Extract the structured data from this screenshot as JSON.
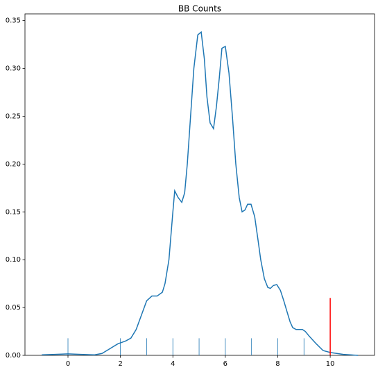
{
  "chart_data": {
    "type": "line",
    "title": "BB Counts",
    "color": "#1f77b4",
    "x": [
      -1,
      -0.5,
      0,
      0.5,
      1,
      1.3,
      1.6,
      1.9,
      2.2,
      2.4,
      2.6,
      2.8,
      3.0,
      3.2,
      3.4,
      3.6,
      3.7,
      3.85,
      4.0,
      4.07,
      4.2,
      4.34,
      4.45,
      4.55,
      4.8,
      4.95,
      5.08,
      5.2,
      5.3,
      5.42,
      5.55,
      5.66,
      5.77,
      5.87,
      6.0,
      6.14,
      6.27,
      6.4,
      6.53,
      6.64,
      6.75,
      6.85,
      6.98,
      7.12,
      7.25,
      7.35,
      7.49,
      7.62,
      7.72,
      7.83,
      7.96,
      8.1,
      8.23,
      8.36,
      8.47,
      8.57,
      8.7,
      8.94,
      9.05,
      9.2,
      9.47,
      9.73,
      10,
      10.5,
      11.06
    ],
    "values": [
      0.0005,
      0.001,
      0.0015,
      0.001,
      0.0005,
      0.002,
      0.007,
      0.012,
      0.015,
      0.018,
      0.027,
      0.042,
      0.057,
      0.062,
      0.062,
      0.066,
      0.075,
      0.1,
      0.15,
      0.172,
      0.165,
      0.16,
      0.17,
      0.2,
      0.3,
      0.335,
      0.338,
      0.31,
      0.27,
      0.243,
      0.237,
      0.26,
      0.29,
      0.321,
      0.323,
      0.295,
      0.25,
      0.2,
      0.165,
      0.15,
      0.152,
      0.158,
      0.158,
      0.145,
      0.12,
      0.1,
      0.08,
      0.071,
      0.07,
      0.073,
      0.074,
      0.068,
      0.057,
      0.045,
      0.035,
      0.029,
      0.027,
      0.027,
      0.025,
      0.02,
      0.012,
      0.005,
      0.003,
      0.001,
      0
    ],
    "rug": [
      0,
      2,
      3,
      4,
      5,
      6,
      7,
      8,
      9,
      10
    ],
    "vline": {
      "x": 10,
      "ymax": 0.06,
      "color": "red"
    },
    "xlim": [
      -1.64,
      11.69
    ],
    "ylim": [
      0,
      0.357
    ],
    "xticks": [
      0,
      2,
      4,
      6,
      8,
      10
    ],
    "yticks": [
      {
        "value": 0,
        "label": "0.00"
      },
      {
        "value": 0.05,
        "label": "0.05"
      },
      {
        "value": 0.1,
        "label": "0.10"
      },
      {
        "value": 0.15,
        "label": "0.15"
      },
      {
        "value": 0.2,
        "label": "0.20"
      },
      {
        "value": 0.25,
        "label": "0.25"
      },
      {
        "value": 0.3,
        "label": "0.30"
      },
      {
        "value": 0.35,
        "label": "0.35"
      }
    ]
  }
}
